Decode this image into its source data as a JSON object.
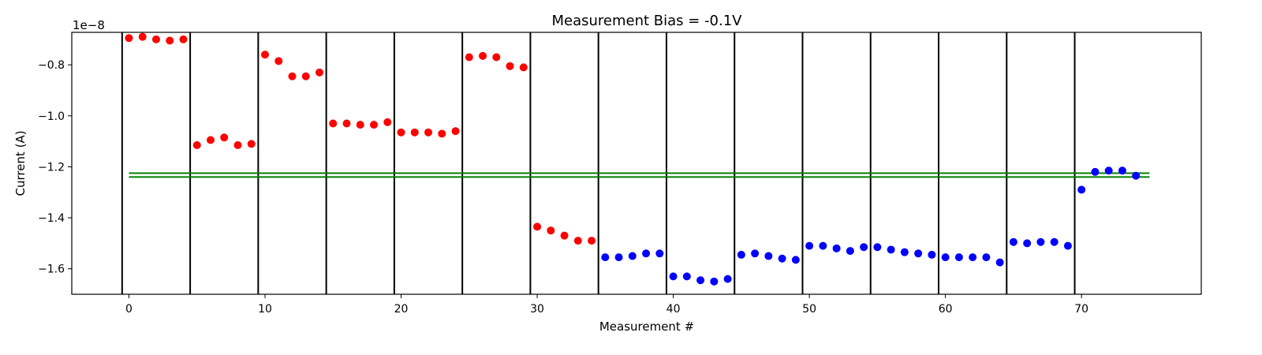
{
  "chart_data": {
    "type": "scatter",
    "title": "Measurement Bias = -0.1V",
    "xlabel": "Measurement #",
    "ylabel": "Current (A)",
    "offset_label": "1e−8",
    "y_scale_factor": 1e-08,
    "xlim": [
      -4.2,
      78.8
    ],
    "ylim": [
      -1.7e-08,
      -6.725e-09
    ],
    "x_ticks": [
      0,
      10,
      20,
      30,
      40,
      50,
      60,
      70
    ],
    "x_tick_labels": [
      "0",
      "10",
      "20",
      "30",
      "40",
      "50",
      "60",
      "70"
    ],
    "y_ticks": [
      -1.6e-08,
      -1.4e-08,
      -1.2e-08,
      -1e-08,
      -8e-09
    ],
    "y_tick_labels": [
      "−1.6",
      "−1.4",
      "−1.2",
      "−1.0",
      "−0.8"
    ],
    "grid": false,
    "vertical_lines": {
      "color": "#000000",
      "x": [
        -0.5,
        4.5,
        9.5,
        14.5,
        19.5,
        24.5,
        29.5,
        34.5,
        39.5,
        44.5,
        49.5,
        54.5,
        59.5,
        64.5,
        69.5
      ],
      "y_range": [
        -1.7e-08,
        -6.725e-09
      ]
    },
    "horizontal_lines": {
      "color": "#008000",
      "y": [
        -1.225e-08,
        -1.24e-08
      ],
      "x_range": [
        0,
        75
      ]
    },
    "series": [
      {
        "color": "#ff0000",
        "x": [
          0,
          1,
          2,
          3,
          4,
          5,
          6,
          7,
          8,
          9,
          10,
          11,
          12,
          13,
          14,
          15,
          16,
          17,
          18,
          19,
          20,
          21,
          22,
          23,
          24,
          25,
          26,
          27,
          28,
          29,
          30,
          31,
          32,
          33,
          34
        ],
        "y": [
          -6.95e-09,
          -6.9e-09,
          -7e-09,
          -7.05e-09,
          -7e-09,
          -1.115e-08,
          -1.095e-08,
          -1.085e-08,
          -1.115e-08,
          -1.11e-08,
          -7.6e-09,
          -7.85e-09,
          -8.45e-09,
          -8.45e-09,
          -8.3e-09,
          -1.03e-08,
          -1.03e-08,
          -1.035e-08,
          -1.035e-08,
          -1.025e-08,
          -1.065e-08,
          -1.065e-08,
          -1.065e-08,
          -1.07e-08,
          -1.06e-08,
          -7.7e-09,
          -7.65e-09,
          -7.7e-09,
          -8.05e-09,
          -8.1e-09,
          -1.435e-08,
          -1.45e-08,
          -1.47e-08,
          -1.49e-08,
          -1.49e-08
        ]
      },
      {
        "color": "#0000ff",
        "x": [
          35,
          36,
          37,
          38,
          39,
          40,
          41,
          42,
          43,
          44,
          45,
          46,
          47,
          48,
          49,
          50,
          51,
          52,
          53,
          54,
          55,
          56,
          57,
          58,
          59,
          60,
          61,
          62,
          63,
          64,
          65,
          66,
          67,
          68,
          69,
          70,
          71,
          72,
          73,
          74
        ],
        "y": [
          -1.555e-08,
          -1.555e-08,
          -1.55e-08,
          -1.54e-08,
          -1.54e-08,
          -1.63e-08,
          -1.63e-08,
          -1.645e-08,
          -1.65e-08,
          -1.64e-08,
          -1.545e-08,
          -1.54e-08,
          -1.55e-08,
          -1.56e-08,
          -1.565e-08,
          -1.51e-08,
          -1.51e-08,
          -1.52e-08,
          -1.53e-08,
          -1.515e-08,
          -1.515e-08,
          -1.525e-08,
          -1.535e-08,
          -1.54e-08,
          -1.545e-08,
          -1.555e-08,
          -1.555e-08,
          -1.555e-08,
          -1.555e-08,
          -1.575e-08,
          -1.495e-08,
          -1.5e-08,
          -1.495e-08,
          -1.495e-08,
          -1.51e-08,
          -1.29e-08,
          -1.22e-08,
          -1.215e-08,
          -1.215e-08,
          -1.235e-08
        ]
      }
    ]
  }
}
